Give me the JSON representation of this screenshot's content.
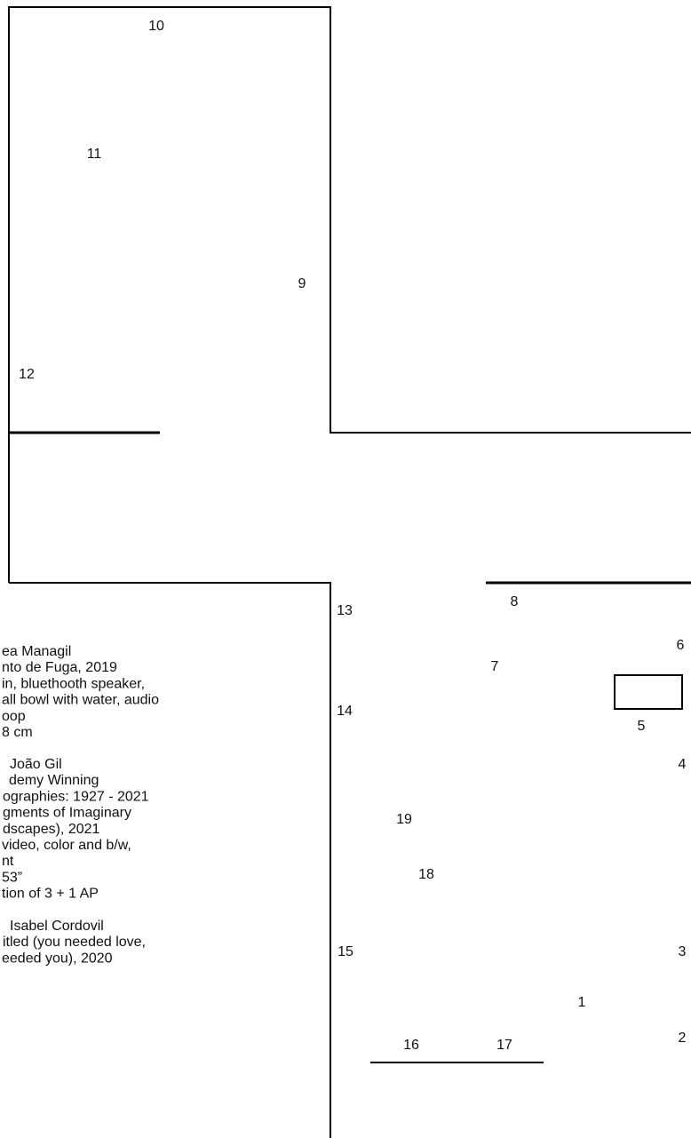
{
  "labels": [
    "10",
    "11",
    "9",
    "12",
    "13",
    "8",
    "6",
    "7",
    "14",
    "5",
    "4",
    "19",
    "18",
    "15",
    "3",
    "1",
    "2",
    "16",
    "17"
  ],
  "legend": {
    "works": [
      {
        "lines": [
          "ea Managil",
          "nto de  Fuga, 2019",
          "in, bluethooth speaker,",
          "all bowl with water, audio",
          "oop",
          "8 cm"
        ]
      },
      {
        "lines": [
          "João Gil",
          "demy Winning",
          "ographies: 1927 - 2021",
          "gments of Imaginary",
          "dscapes), 2021",
          "video, color and b/w,",
          "nt",
          "53”",
          "tion of 3 + 1 AP"
        ]
      },
      {
        "lines": [
          "Isabel Cordovil",
          "itled (you needed love,",
          "eeded you), 2020"
        ]
      }
    ]
  }
}
